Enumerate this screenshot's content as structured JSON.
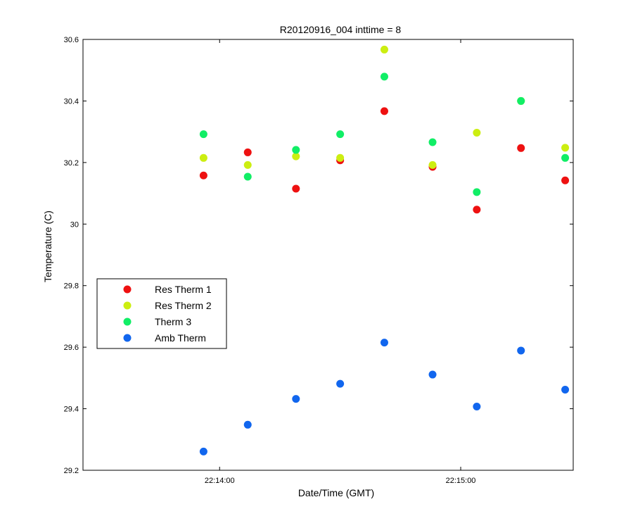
{
  "chart_data": {
    "type": "scatter",
    "title": "R20120916_004 inttime = 8",
    "xlabel": "Date/Time (GMT)",
    "ylabel": "Temperature (C)",
    "xlim": [
      "22:13:26",
      "22:15:28"
    ],
    "ylim": [
      29.2,
      30.6
    ],
    "x_ticks": [
      "22:14:00",
      "22:15:00"
    ],
    "y_ticks": [
      29.2,
      29.4,
      29.6,
      29.8,
      30,
      30.2,
      30.4,
      30.6
    ],
    "y_tick_labels": [
      "29.2",
      "29.4",
      "29.6",
      "29.8",
      "30",
      "30.2",
      "30.4",
      "30.6"
    ],
    "grid": false,
    "legend_position": "left",
    "x": [
      "22:13:56",
      "22:14:07",
      "22:14:19",
      "22:14:30",
      "22:14:41",
      "22:14:53",
      "22:15:04",
      "22:15:15",
      "22:15:26"
    ],
    "series": [
      {
        "name": "Res Therm 1",
        "color": "#ee1111",
        "values": [
          30.158,
          30.233,
          30.115,
          30.207,
          30.367,
          30.186,
          30.047,
          30.247,
          30.142
        ]
      },
      {
        "name": "Res Therm 2",
        "color": "#ccee11",
        "values": [
          30.215,
          30.192,
          30.22,
          30.215,
          30.567,
          30.192,
          30.297,
          30.4,
          30.248
        ]
      },
      {
        "name": "Therm 3",
        "color": "#11ee66",
        "values": [
          30.292,
          30.154,
          30.241,
          30.292,
          30.479,
          30.266,
          30.104,
          30.4,
          30.215
        ]
      },
      {
        "name": "Amb Therm",
        "color": "#1166ee",
        "values": [
          29.261,
          29.348,
          29.432,
          29.481,
          29.615,
          29.511,
          29.407,
          29.589,
          29.462
        ]
      }
    ]
  }
}
